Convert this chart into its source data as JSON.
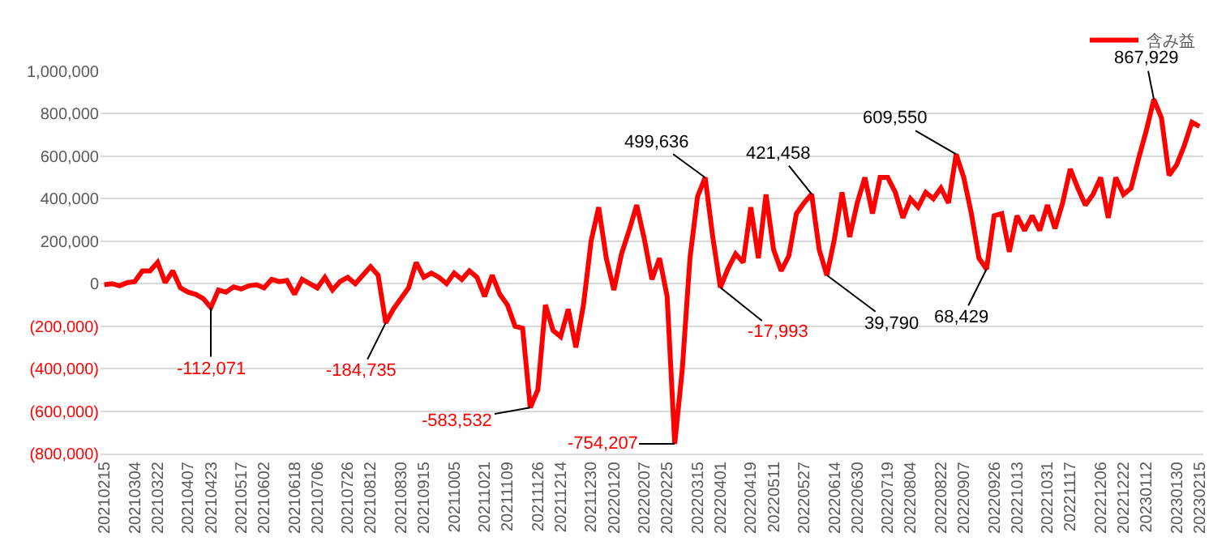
{
  "chart_data": {
    "type": "line",
    "categories": [
      "20210215",
      null,
      null,
      null,
      "20210304",
      null,
      null,
      "20210322",
      null,
      null,
      null,
      "20210407",
      null,
      null,
      "20210423",
      null,
      null,
      null,
      "20210517",
      null,
      null,
      "20210602",
      null,
      null,
      null,
      "20210618",
      null,
      null,
      "20210706",
      null,
      null,
      null,
      "20210726",
      null,
      null,
      "20210812",
      null,
      null,
      null,
      "20210830",
      null,
      null,
      "20210915",
      null,
      null,
      null,
      "20211005",
      null,
      null,
      null,
      "20211021",
      null,
      null,
      "20211109",
      null,
      null,
      null,
      "20211126",
      null,
      null,
      "20211214",
      null,
      null,
      null,
      "20211230",
      null,
      null,
      "20220120",
      null,
      null,
      null,
      "20220207",
      null,
      null,
      "20220225",
      null,
      null,
      null,
      "20220315",
      null,
      null,
      "20220401",
      null,
      null,
      null,
      "20220419",
      null,
      null,
      "20220511",
      null,
      null,
      null,
      "20220527",
      null,
      null,
      null,
      "20220614",
      null,
      null,
      "20220630",
      null,
      null,
      null,
      "20220719",
      null,
      null,
      "20220804",
      null,
      null,
      null,
      "20220822",
      null,
      null,
      "20220907",
      null,
      null,
      null,
      "20220926",
      null,
      null,
      "20221013",
      null,
      null,
      null,
      "20221031",
      null,
      null,
      "20221117",
      null,
      null,
      null,
      "20221206",
      null,
      null,
      "20221222",
      null,
      null,
      "20230112",
      null,
      null,
      null,
      "20230130",
      null,
      null,
      "20230215"
    ],
    "series": [
      {
        "name": "含み益",
        "color": "#ff0000",
        "values": [
          -5000,
          0,
          -10000,
          5000,
          10000,
          60000,
          60000,
          100000,
          5000,
          60000,
          -20000,
          -40000,
          -50000,
          -70000,
          -112071,
          -30000,
          -40000,
          -15000,
          -25000,
          -10000,
          -5000,
          -20000,
          20000,
          10000,
          15000,
          -50000,
          20000,
          0,
          -20000,
          30000,
          -30000,
          10000,
          30000,
          0,
          40000,
          80000,
          40000,
          -184735,
          -120000,
          -70000,
          -20000,
          100000,
          30000,
          50000,
          30000,
          0,
          50000,
          20000,
          60000,
          30000,
          -60000,
          40000,
          -50000,
          -100000,
          -200000,
          -210000,
          -583532,
          -500000,
          -100000,
          -220000,
          -250000,
          -120000,
          -300000,
          -100000,
          200000,
          360000,
          120000,
          -30000,
          140000,
          250000,
          370000,
          210000,
          20000,
          120000,
          -60000,
          -754207,
          -400000,
          120000,
          410000,
          499636,
          220000,
          -17993,
          70000,
          140000,
          100000,
          360000,
          120000,
          420000,
          160000,
          60000,
          130000,
          330000,
          380000,
          421458,
          160000,
          39790,
          210000,
          430000,
          220000,
          380000,
          500000,
          330000,
          500000,
          500000,
          430000,
          310000,
          400000,
          360000,
          430000,
          400000,
          450000,
          380000,
          609550,
          500000,
          330000,
          120000,
          68429,
          320000,
          330000,
          150000,
          320000,
          250000,
          320000,
          250000,
          370000,
          260000,
          380000,
          540000,
          450000,
          370000,
          420000,
          500000,
          310000,
          500000,
          420000,
          450000,
          590000,
          720000,
          867929,
          780000,
          510000,
          560000,
          650000,
          760000,
          740000
        ],
        "value_labels": [
          null,
          null,
          null,
          null,
          null,
          null,
          null,
          null,
          null,
          null,
          null,
          null,
          null,
          null,
          "-112,071",
          null,
          null,
          null,
          null,
          null,
          null,
          null,
          null,
          null,
          null,
          null,
          null,
          null,
          null,
          null,
          null,
          null,
          null,
          null,
          null,
          null,
          null,
          "-184,735",
          null,
          null,
          null,
          null,
          null,
          null,
          null,
          null,
          null,
          null,
          null,
          null,
          null,
          null,
          null,
          null,
          null,
          null,
          "-583,532",
          null,
          null,
          null,
          null,
          null,
          null,
          null,
          null,
          null,
          null,
          null,
          null,
          null,
          null,
          null,
          null,
          null,
          null,
          "-754,207",
          null,
          null,
          null,
          "499,636",
          null,
          "-17,993",
          null,
          null,
          null,
          null,
          null,
          null,
          null,
          null,
          null,
          null,
          null,
          "421,458",
          null,
          "39,790",
          null,
          null,
          null,
          null,
          null,
          null,
          null,
          null,
          null,
          null,
          null,
          null,
          null,
          null,
          null,
          null,
          "609,550",
          null,
          null,
          null,
          "68,429",
          null,
          null,
          null,
          null,
          null,
          null,
          null,
          null,
          null,
          null,
          null,
          null,
          null,
          null,
          null,
          null,
          null,
          null,
          null,
          null,
          null,
          "867,929",
          null,
          null,
          null,
          null,
          null,
          null
        ]
      }
    ],
    "ylim": [
      -800000,
      1000000
    ],
    "yticks": [
      {
        "value": -800000,
        "label": "(800,000)"
      },
      {
        "value": -600000,
        "label": "(600,000)"
      },
      {
        "value": -400000,
        "label": "(400,000)"
      },
      {
        "value": -200000,
        "label": "(200,000)"
      },
      0,
      {
        "value": 200000,
        "label": "200,000"
      },
      {
        "value": 400000,
        "label": "400,000"
      },
      {
        "value": 600000,
        "label": "600,000"
      },
      {
        "value": 800000,
        "label": "800,000"
      },
      {
        "value": 1000000,
        "label": "1,000,000"
      }
    ],
    "grid": "y",
    "legend": "top right"
  }
}
